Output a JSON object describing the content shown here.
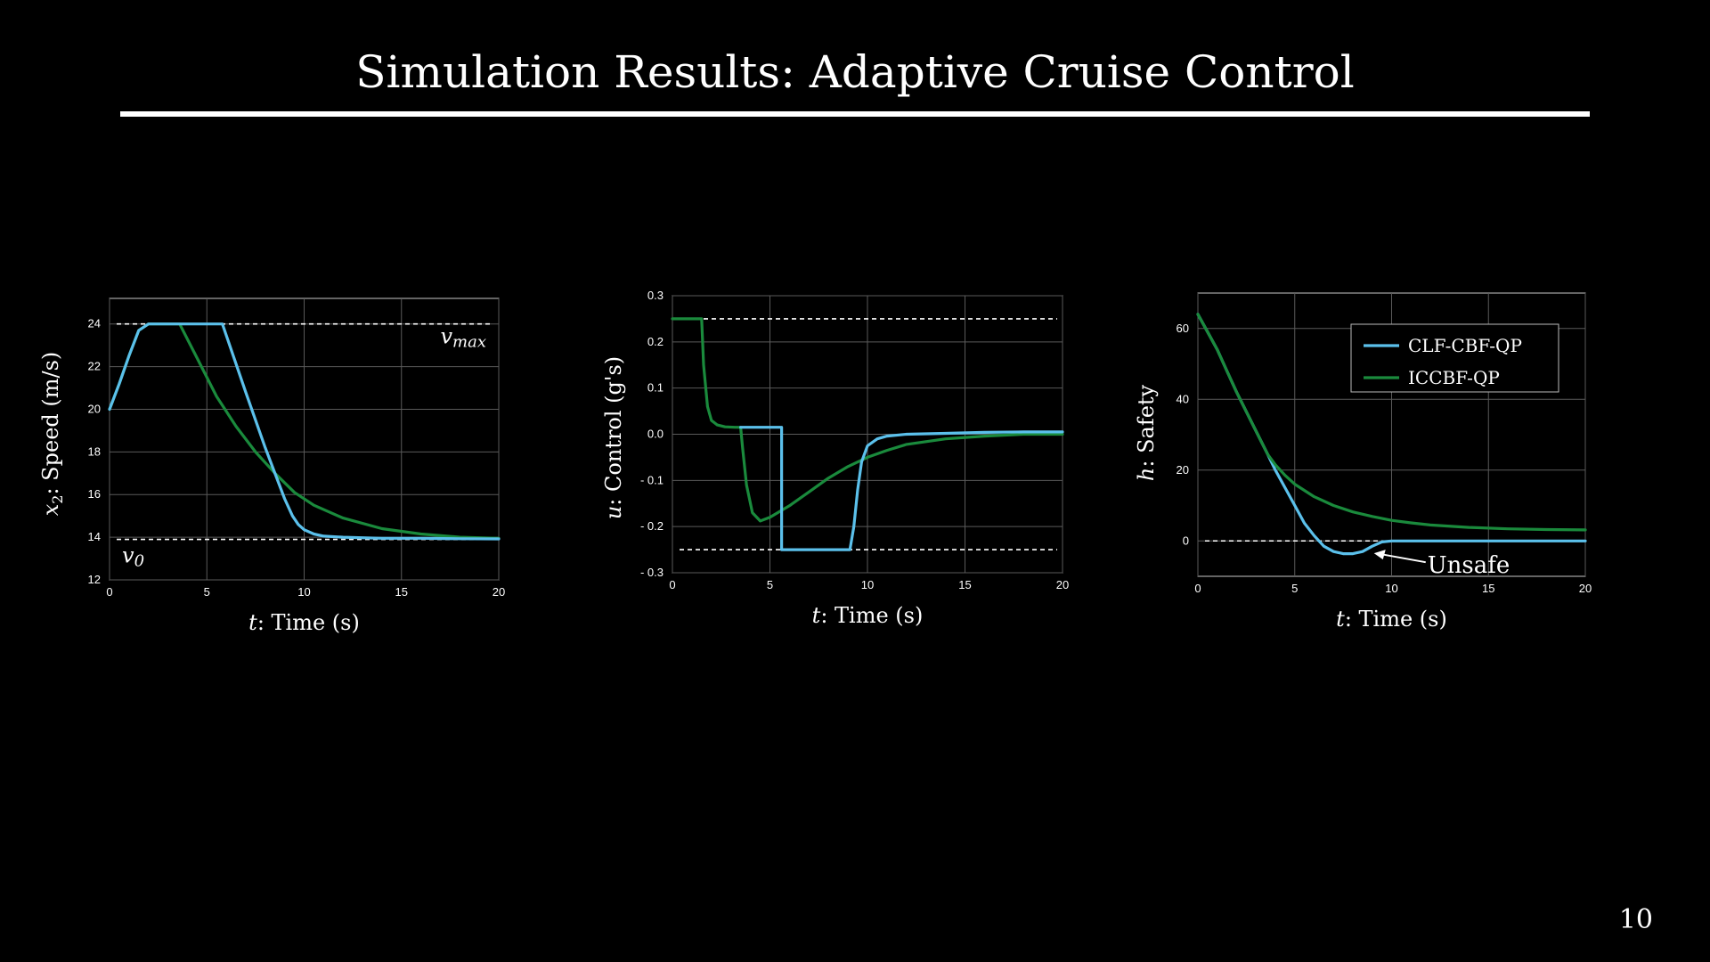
{
  "slide": {
    "title": "Simulation Results: Adaptive Cruise Control",
    "page_number": "10"
  },
  "colors": {
    "clf": "#5bc0eb",
    "iccbf": "#1a8a3c",
    "background": "#000000",
    "foreground": "#ffffff"
  },
  "chart_data": [
    {
      "type": "line",
      "xlabel_var": "t",
      "xlabel": ": Time (s)",
      "ylabel_var": "x",
      "ylabel_sub": "2",
      "ylabel": ": Speed (m/s)",
      "xlim": [
        0,
        20
      ],
      "ylim": [
        12,
        25.2
      ],
      "xticks": [
        0,
        5,
        10,
        15,
        20
      ],
      "yticks": [
        12,
        14,
        16,
        18,
        20,
        22,
        24
      ],
      "ytick_labels": [
        "12",
        "14",
        "16",
        "18",
        "20",
        "22",
        "24"
      ],
      "grid": true,
      "hlines": [
        {
          "y": 24,
          "label_var": "v",
          "label_sub": "max"
        },
        {
          "y": 13.9,
          "label_var": "v",
          "label_sub": "0"
        }
      ],
      "series": [
        {
          "color_key": "iccbf",
          "x": [
            0,
            0.5,
            1,
            1.5,
            2,
            2.5,
            3,
            3.6,
            4.5,
            5.5,
            6.5,
            7.5,
            8.5,
            9.5,
            10.5,
            12,
            14,
            16,
            18,
            20
          ],
          "y": [
            20,
            21.2,
            22.5,
            23.7,
            24,
            24,
            24,
            24,
            22.4,
            20.6,
            19.2,
            18,
            17,
            16.1,
            15.5,
            14.9,
            14.4,
            14.15,
            14.0,
            13.95
          ]
        },
        {
          "color_key": "clf",
          "x": [
            0,
            0.5,
            1,
            1.5,
            2,
            2.5,
            3,
            3.6,
            4.5,
            5.8,
            7,
            8,
            9,
            9.4,
            9.7,
            10,
            10.5,
            11,
            12,
            14,
            16,
            18,
            20
          ],
          "y": [
            20,
            21.2,
            22.5,
            23.7,
            24,
            24,
            24,
            24,
            24,
            24,
            20.8,
            18.2,
            15.8,
            15.0,
            14.6,
            14.35,
            14.15,
            14.05,
            14.0,
            13.95,
            13.95,
            13.93,
            13.92
          ]
        }
      ]
    },
    {
      "type": "line",
      "xlabel_var": "t",
      "xlabel": ": Time (s)",
      "ylabel_var": "u",
      "ylabel": ": Control (g's)",
      "xlim": [
        0,
        20
      ],
      "ylim": [
        -0.3,
        0.3
      ],
      "xticks": [
        0,
        5,
        10,
        15,
        20
      ],
      "yticks": [
        -0.3,
        -0.2,
        -0.1,
        0.0,
        0.1,
        0.2,
        0.3
      ],
      "ytick_labels": [
        "- 0.3",
        "- 0.2",
        "- 0.1",
        "0.0",
        "0.1",
        "0.2",
        "0.3"
      ],
      "grid": true,
      "hlines": [
        {
          "y": 0.25
        },
        {
          "y": -0.25
        }
      ],
      "series": [
        {
          "color_key": "iccbf",
          "x": [
            0,
            1.5,
            1.6,
            1.8,
            2.0,
            2.3,
            2.7,
            3.2,
            3.5,
            3.6,
            3.8,
            4.1,
            4.5,
            5,
            6,
            7,
            8,
            9,
            10,
            11,
            12,
            14,
            16,
            18,
            20
          ],
          "y": [
            0.25,
            0.25,
            0.15,
            0.06,
            0.03,
            0.02,
            0.016,
            0.015,
            0.015,
            -0.03,
            -0.11,
            -0.17,
            -0.188,
            -0.18,
            -0.155,
            -0.125,
            -0.095,
            -0.07,
            -0.05,
            -0.035,
            -0.022,
            -0.01,
            -0.004,
            0.0,
            0.0
          ]
        },
        {
          "color_key": "clf",
          "x": [
            3.5,
            5.6,
            5.6,
            5.7,
            5.7,
            9.1,
            9.3,
            9.5,
            9.7,
            10,
            10.5,
            11,
            12,
            14,
            16,
            18,
            20
          ],
          "y": [
            0.015,
            0.015,
            -0.25,
            -0.25,
            -0.25,
            -0.25,
            -0.2,
            -0.12,
            -0.06,
            -0.025,
            -0.01,
            -0.004,
            0.0,
            0.002,
            0.004,
            0.005,
            0.005
          ]
        }
      ]
    },
    {
      "type": "line",
      "xlabel_var": "t",
      "xlabel": ": Time (s)",
      "ylabel_var": "h",
      "ylabel": ": Safety",
      "xlim": [
        0,
        20
      ],
      "ylim": [
        -10,
        70
      ],
      "xticks": [
        0,
        5,
        10,
        15,
        20
      ],
      "yticks": [
        0,
        20,
        40,
        60
      ],
      "ytick_labels": [
        "0",
        "20",
        "40",
        "60"
      ],
      "grid": true,
      "hlines": [
        {
          "y": 0
        }
      ],
      "legend": "top-right",
      "annotation": {
        "text": "Unsafe",
        "x": 9.0,
        "y": -3
      },
      "series": [
        {
          "name": "CLF-CBF-QP",
          "color_key": "clf",
          "x": [
            0,
            0.5,
            1,
            1.5,
            2,
            2.5,
            3,
            3.6,
            4,
            4.5,
            5,
            5.5,
            6,
            6.5,
            7,
            7.5,
            8,
            8.5,
            9,
            9.5,
            10,
            11,
            12,
            14,
            16,
            18,
            20
          ],
          "y": [
            64,
            59,
            54,
            48,
            42,
            36.5,
            31,
            24.5,
            20,
            15,
            10,
            5,
            1.5,
            -1.5,
            -3,
            -3.6,
            -3.6,
            -3,
            -1.5,
            -0.3,
            0,
            0,
            0,
            0,
            0,
            0,
            0
          ]
        },
        {
          "name": "ICCBF-QP",
          "color_key": "iccbf",
          "x": [
            0,
            0.5,
            1,
            1.5,
            2,
            2.5,
            3,
            3.6,
            4,
            4.5,
            5,
            6,
            7,
            8,
            9,
            10,
            11,
            12,
            14,
            16,
            18,
            20
          ],
          "y": [
            64,
            59,
            54,
            48,
            42,
            36.5,
            31,
            24.5,
            21.5,
            18.5,
            16,
            12.5,
            10,
            8.2,
            6.9,
            5.8,
            5.1,
            4.5,
            3.8,
            3.4,
            3.2,
            3.1
          ]
        }
      ]
    }
  ]
}
